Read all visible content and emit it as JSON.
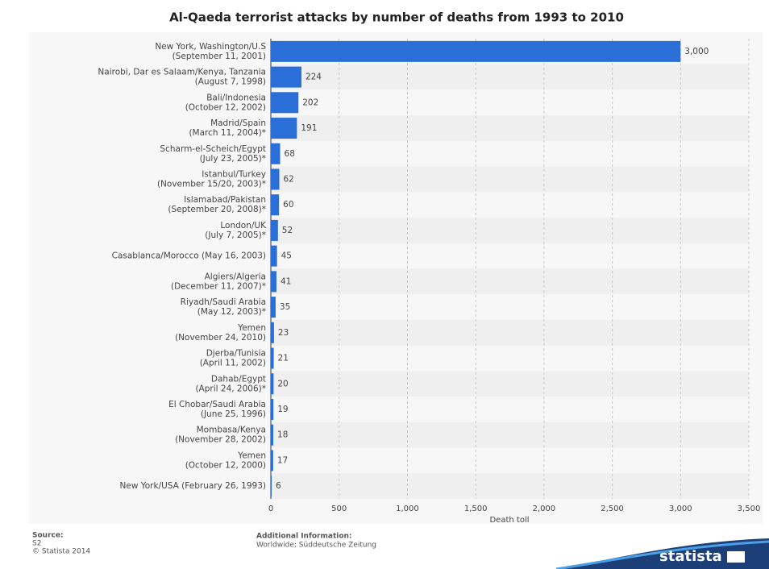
{
  "chart_data": {
    "type": "bar",
    "orientation": "horizontal",
    "title": "Al-Qaeda terrorist attacks by number of deaths from 1993 to 2010",
    "x_label": "Death toll",
    "categories": [
      [
        "New York, Washington/U.S",
        "(September 11, 2001)"
      ],
      [
        "Nairobi, Dar es Salaam/Kenya, Tanzania",
        "(August 7, 1998)"
      ],
      [
        "Bali/Indonesia",
        "(October 12, 2002)"
      ],
      [
        "Madrid/Spain",
        "(March 11, 2004)*"
      ],
      [
        "Scharm-el-Scheich/Egypt",
        "(July 23, 2005)*"
      ],
      [
        "Istanbul/Turkey",
        "(November 15/20, 2003)*"
      ],
      [
        "Islamabad/Pakistan",
        "(September 20, 2008)*"
      ],
      [
        "London/UK",
        "(July 7, 2005)*"
      ],
      [
        "Casablanca/Morocco (May 16, 2003)"
      ],
      [
        "Algiers/Algeria",
        "(December 11, 2007)*"
      ],
      [
        "Riyadh/Saudi Arabia",
        "(May 12, 2003)*"
      ],
      [
        "Yemen",
        "(November 24, 2010)"
      ],
      [
        "Djerba/Tunisia",
        "(April 11, 2002)"
      ],
      [
        "Dahab/Egypt",
        "(April 24, 2006)*"
      ],
      [
        "El Chobar/Saudi Arabia",
        "(June 25, 1996)"
      ],
      [
        "Mombasa/Kenya",
        "(November 28, 2002)"
      ],
      [
        "Yemen",
        "(October 12, 2000)"
      ],
      [
        "New York/USA (February 26, 1993)"
      ]
    ],
    "values": [
      3000,
      224,
      202,
      191,
      68,
      62,
      60,
      52,
      45,
      41,
      35,
      23,
      21,
      20,
      19,
      18,
      17,
      6
    ],
    "value_labels": [
      "3,000",
      "224",
      "202",
      "191",
      "68",
      "62",
      "60",
      "52",
      "45",
      "41",
      "35",
      "23",
      "21",
      "20",
      "19",
      "18",
      "17",
      "6"
    ],
    "color": "#2a6ed8",
    "xlim": [
      0,
      3500
    ],
    "xticks": [
      0,
      500,
      {
        "value": 1000,
        "label": "1,000"
      },
      {
        "value": 1500,
        "label": "1,500"
      },
      {
        "value": 2000,
        "label": "2,000"
      },
      {
        "value": 2500,
        "label": "2,500"
      },
      {
        "value": 3000,
        "label": "3,000"
      },
      {
        "value": 3500,
        "label": "3,500"
      }
    ],
    "grid": true
  },
  "footer": {
    "source_title": "Source:",
    "source": "S2",
    "copyright": "© Statista 2014",
    "info_title": "Additional Information:",
    "info": "Worldwide; Süddeutsche Zeitung",
    "brand": "statista"
  }
}
